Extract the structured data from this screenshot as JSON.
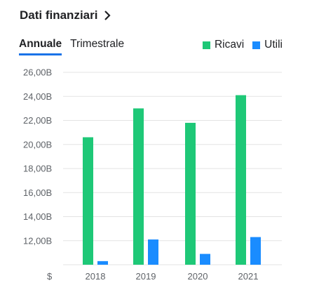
{
  "header": {
    "title": "Dati finanziari",
    "chevron_icon": "chevron-right-icon"
  },
  "tabs": [
    {
      "label": "Annuale",
      "active": true
    },
    {
      "label": "Trimestrale",
      "active": false
    }
  ],
  "colors": {
    "ricavi": "#1ec877",
    "utili": "#1a8cff",
    "tab_underline": "#1a73e8"
  },
  "chart_data": {
    "type": "bar",
    "categories": [
      "2018",
      "2019",
      "2020",
      "2021"
    ],
    "series": [
      {
        "name": "Ricavi",
        "values": [
          20.6,
          23.0,
          21.8,
          24.1
        ]
      },
      {
        "name": "Utili",
        "values": [
          10.3,
          12.1,
          10.9,
          12.3
        ]
      }
    ],
    "ylim": [
      10.0,
      26.0
    ],
    "y_ticks": [
      {
        "value": 12,
        "label": "12,00B"
      },
      {
        "value": 14,
        "label": "14,00B"
      },
      {
        "value": 16,
        "label": "16,00B"
      },
      {
        "value": 18,
        "label": "18,00B"
      },
      {
        "value": 20,
        "label": "20,00B"
      },
      {
        "value": 22,
        "label": "22,00B"
      },
      {
        "value": 24,
        "label": "24,00B"
      },
      {
        "value": 26,
        "label": "26,00B"
      }
    ],
    "currency_label": "$",
    "grid": true,
    "legend_position": "top-right"
  }
}
